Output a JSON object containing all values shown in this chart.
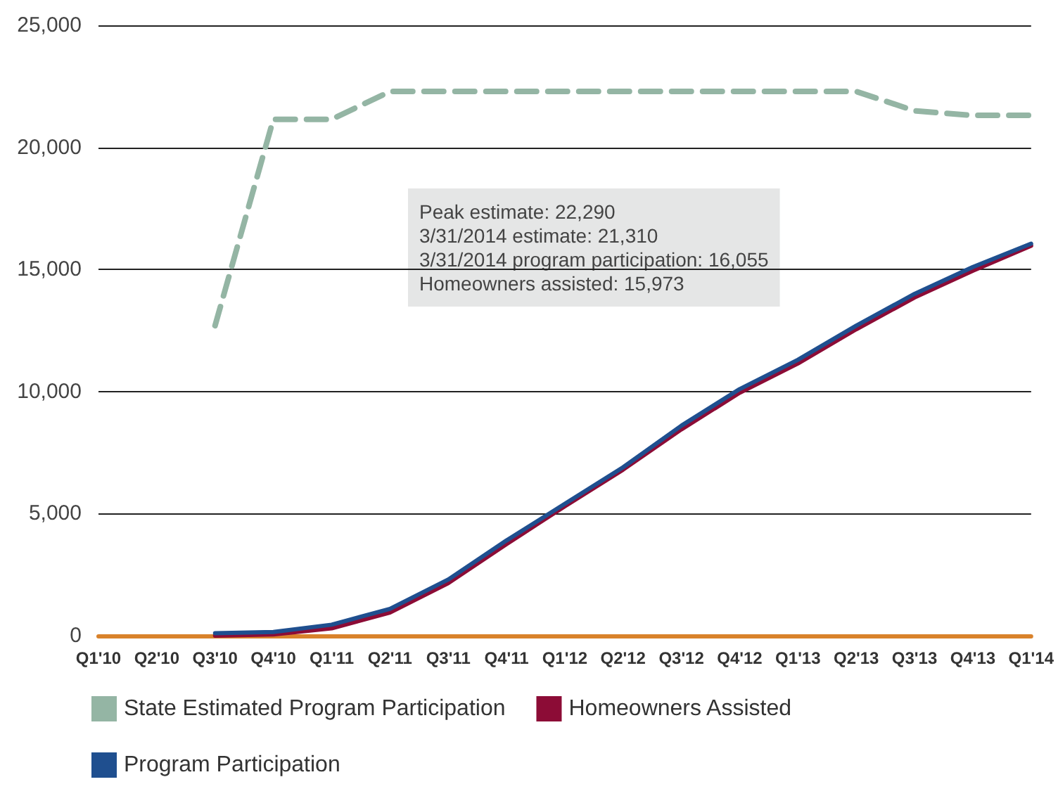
{
  "chart_data": {
    "type": "line",
    "categories": [
      "Q1'10",
      "Q2'10",
      "Q3'10",
      "Q4'10",
      "Q1'11",
      "Q2'11",
      "Q3'11",
      "Q4'11",
      "Q1'12",
      "Q2'12",
      "Q3'12",
      "Q4'12",
      "Q1'13",
      "Q2'13",
      "Q3'13",
      "Q4'13",
      "Q1'14"
    ],
    "series": [
      {
        "name": "State Estimated Program Participation",
        "color": "#94b5a4",
        "line_style": "dashed",
        "values": [
          null,
          null,
          12700,
          21150,
          21150,
          22290,
          22290,
          22290,
          22290,
          22290,
          22290,
          22290,
          22290,
          22290,
          21500,
          21310,
          21310
        ]
      },
      {
        "name": "Homeowners Assisted",
        "color": "#8c0c36",
        "line_style": "solid",
        "values": [
          null,
          null,
          0,
          50,
          300,
          950,
          2150,
          3750,
          5300,
          6800,
          8450,
          9950,
          11150,
          12550,
          13850,
          14950,
          15973
        ]
      },
      {
        "name": "Program Participation",
        "color": "#1f4f8f",
        "line_style": "solid",
        "values": [
          null,
          null,
          100,
          150,
          450,
          1100,
          2300,
          3900,
          5400,
          6900,
          8600,
          10100,
          11300,
          12700,
          14000,
          15100,
          16055
        ]
      }
    ],
    "ylim": [
      0,
      25000
    ],
    "yticks": [
      0,
      {
        "value": 5000,
        "label": "5,000"
      },
      {
        "value": 10000,
        "label": "10,000"
      },
      {
        "value": 15000,
        "label": "15,000"
      },
      {
        "value": 20000,
        "label": "20,000"
      },
      {
        "value": 25000,
        "label": "25,000"
      }
    ],
    "grid": "y",
    "legend": "bottom",
    "marker": "none",
    "annotations": [
      "Peak estimate: 22,290\n3/31/2014 estimate: 21,310\n3/31/2014 program participation: 16,055\nHomeowners assisted: 15,973"
    ]
  }
}
